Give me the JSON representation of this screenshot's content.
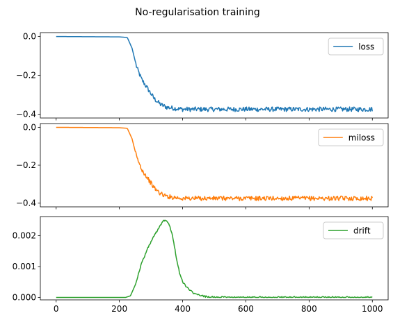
{
  "figure": {
    "suptitle": "No-regularisation training"
  },
  "chart_data": [
    {
      "type": "line",
      "x_range": [
        0,
        1000
      ],
      "ylim": [
        -0.42,
        0.02
      ],
      "yticks": [
        0.0,
        -0.2,
        -0.4
      ],
      "ytick_labels": [
        "0.0",
        "−0.2",
        "−0.4"
      ],
      "xticks": [
        0,
        200,
        400,
        600,
        800,
        1000
      ],
      "xtick_labels_visible": false,
      "grid": false,
      "legend": "top-right",
      "series": [
        {
          "name": "loss",
          "color": "#1f77b4",
          "shape": "sigmoid-decay",
          "points": [
            [
              0,
              0.0
            ],
            [
              100,
              -0.001
            ],
            [
              200,
              -0.002
            ],
            [
              225,
              -0.005
            ],
            [
              240,
              -0.06
            ],
            [
              255,
              -0.16
            ],
            [
              270,
              -0.22
            ],
            [
              290,
              -0.27
            ],
            [
              310,
              -0.32
            ],
            [
              330,
              -0.35
            ],
            [
              350,
              -0.365
            ],
            [
              400,
              -0.375
            ],
            [
              500,
              -0.375
            ],
            [
              600,
              -0.375
            ],
            [
              700,
              -0.375
            ],
            [
              800,
              -0.375
            ],
            [
              900,
              -0.375
            ],
            [
              1000,
              -0.375
            ]
          ],
          "noise_after_x": 250,
          "noise_amplitude": 0.012
        }
      ]
    },
    {
      "type": "line",
      "x_range": [
        0,
        1000
      ],
      "ylim": [
        -0.42,
        0.02
      ],
      "yticks": [
        0.0,
        -0.2,
        -0.4
      ],
      "ytick_labels": [
        "0.0",
        "−0.2",
        "−0.4"
      ],
      "xticks": [
        0,
        200,
        400,
        600,
        800,
        1000
      ],
      "xtick_labels_visible": false,
      "grid": false,
      "legend": "top-right",
      "series": [
        {
          "name": "miloss",
          "color": "#ff7f0e",
          "shape": "sigmoid-decay",
          "points": [
            [
              0,
              0.0
            ],
            [
              100,
              -0.001
            ],
            [
              200,
              -0.002
            ],
            [
              225,
              -0.005
            ],
            [
              240,
              -0.06
            ],
            [
              255,
              -0.16
            ],
            [
              270,
              -0.22
            ],
            [
              290,
              -0.27
            ],
            [
              310,
              -0.32
            ],
            [
              330,
              -0.35
            ],
            [
              350,
              -0.365
            ],
            [
              400,
              -0.375
            ],
            [
              500,
              -0.375
            ],
            [
              600,
              -0.375
            ],
            [
              700,
              -0.375
            ],
            [
              800,
              -0.375
            ],
            [
              900,
              -0.375
            ],
            [
              1000,
              -0.375
            ]
          ],
          "noise_after_x": 250,
          "noise_amplitude": 0.012
        }
      ]
    },
    {
      "type": "line",
      "x_range": [
        0,
        1000
      ],
      "ylim": [
        -8e-05,
        0.00262
      ],
      "yticks": [
        0.0,
        0.001,
        0.002
      ],
      "ytick_labels": [
        "0.000",
        "0.001",
        "0.002"
      ],
      "xticks": [
        0,
        200,
        400,
        600,
        800,
        1000
      ],
      "xtick_labels": [
        "0",
        "200",
        "400",
        "600",
        "800",
        "1000"
      ],
      "xtick_labels_visible": true,
      "grid": false,
      "legend": "top-right",
      "series": [
        {
          "name": "drift",
          "color": "#2ca02c",
          "shape": "hump",
          "points": [
            [
              0,
              0.0
            ],
            [
              220,
              0.0
            ],
            [
              235,
              5e-05
            ],
            [
              250,
              0.0004
            ],
            [
              270,
              0.0011
            ],
            [
              290,
              0.0016
            ],
            [
              310,
              0.002
            ],
            [
              330,
              0.00235
            ],
            [
              340,
              0.0025
            ],
            [
              350,
              0.0025
            ],
            [
              360,
              0.0023
            ],
            [
              370,
              0.0019
            ],
            [
              380,
              0.0013
            ],
            [
              390,
              0.0008
            ],
            [
              400,
              0.0005
            ],
            [
              420,
              0.00025
            ],
            [
              440,
              0.0001
            ],
            [
              470,
              3e-05
            ],
            [
              500,
              0.0
            ],
            [
              1000,
              0.0
            ]
          ],
          "noise_after_x": 250,
          "noise_amplitude": 3e-05
        }
      ]
    }
  ]
}
